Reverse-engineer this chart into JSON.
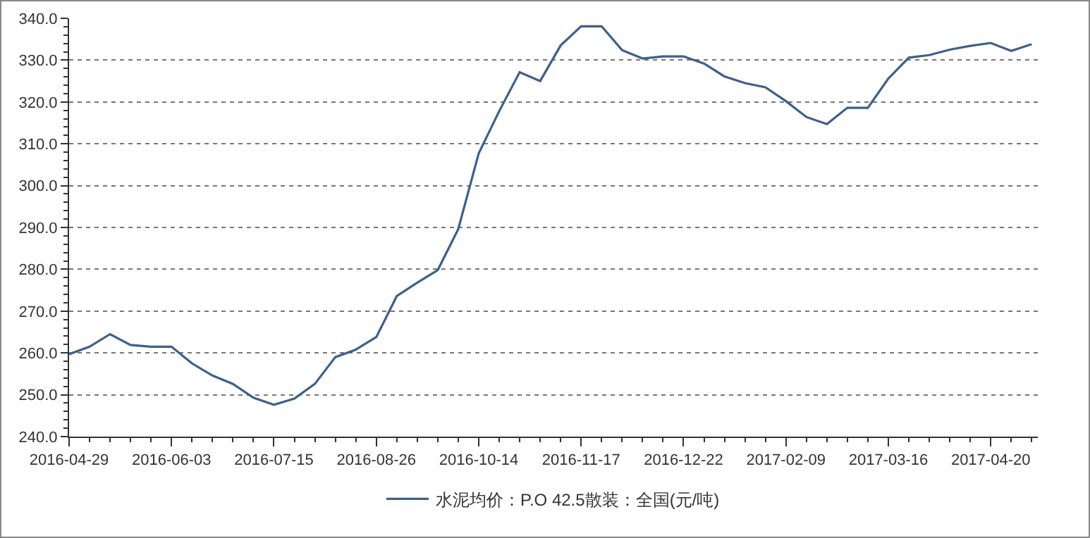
{
  "chart_data": {
    "type": "line",
    "categories": [
      "2016-04-29",
      null,
      null,
      null,
      null,
      "2016-06-03",
      null,
      null,
      null,
      null,
      "2016-07-15",
      null,
      null,
      null,
      null,
      "2016-08-26",
      null,
      null,
      null,
      null,
      "2016-10-14",
      null,
      null,
      null,
      null,
      "2016-11-17",
      null,
      null,
      null,
      null,
      "2016-12-22",
      null,
      null,
      null,
      null,
      "2017-02-09",
      null,
      null,
      null,
      null,
      "2017-03-16",
      null,
      null,
      null,
      null,
      "2017-04-20",
      null,
      null
    ],
    "series": [
      {
        "name": "水泥均价：P.O 42.5散装：全国(元/吨)",
        "color": "#3e5f8a",
        "values": [
          259.7,
          261.5,
          264.5,
          261.9,
          261.5,
          261.5,
          257.5,
          254.6,
          252.6,
          249.3,
          247.6,
          249.1,
          252.6,
          259.0,
          260.8,
          263.8,
          273.6,
          276.8,
          279.8,
          289.6,
          307.7,
          317.8,
          327.1,
          325.0,
          333.5,
          338.1,
          338.1,
          332.4,
          330.4,
          330.9,
          330.9,
          329.2,
          326.1,
          324.5,
          323.5,
          320.2,
          316.4,
          314.7,
          318.6,
          318.6,
          325.6,
          330.6,
          331.2,
          332.5,
          333.4,
          334.1,
          332.2,
          333.8
        ]
      }
    ],
    "ylim": [
      240,
      340
    ],
    "yticks": [
      {
        "value": 240,
        "label": "240.0"
      },
      {
        "value": 250,
        "label": "250.0"
      },
      {
        "value": 260,
        "label": "260.0"
      },
      {
        "value": 270,
        "label": "270.0"
      },
      {
        "value": 280,
        "label": "280.0"
      },
      {
        "value": 290,
        "label": "290.0"
      },
      {
        "value": 300,
        "label": "300.0"
      },
      {
        "value": 310,
        "label": "310.0"
      },
      {
        "value": 320,
        "label": "320.0"
      },
      {
        "value": 330,
        "label": "330.0"
      },
      {
        "value": 340,
        "label": "340.0"
      }
    ],
    "grid": "y",
    "legend": "bottom",
    "marker": "none",
    "line_style": "solid"
  }
}
